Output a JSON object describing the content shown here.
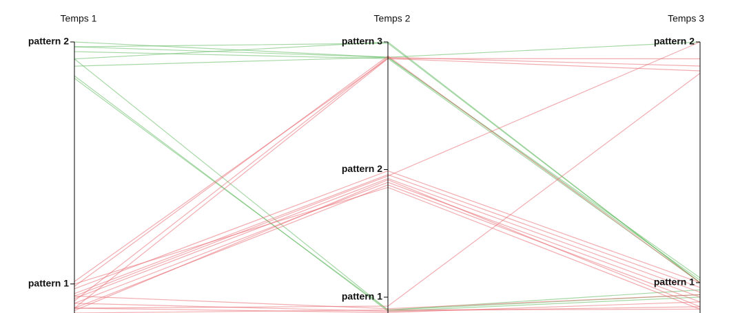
{
  "chart_data": {
    "type": "parallel",
    "dimensions": [
      {
        "name": "Temps 1",
        "ylim": [
          0.88,
          2
        ],
        "yticks": [
          {
            "value": 2,
            "label": "pattern 2"
          },
          {
            "value": 1,
            "label": "pattern 1"
          }
        ]
      },
      {
        "name": "Temps 2",
        "ylim": [
          0.876,
          3
        ],
        "yticks": [
          {
            "value": 3,
            "label": "pattern 3"
          },
          {
            "value": 2,
            "label": "pattern 2"
          },
          {
            "value": 1,
            "label": "pattern 1"
          }
        ]
      },
      {
        "name": "Temps 3",
        "ylim": [
          0.874,
          2
        ],
        "yticks": [
          {
            "value": 2,
            "label": "pattern 2"
          },
          {
            "value": 1,
            "label": "pattern 1"
          }
        ]
      }
    ],
    "series": [
      {
        "color": "#5cb85c",
        "values": [
          2.0,
          2.88,
          1.02
        ]
      },
      {
        "color": "#5cb85c",
        "values": [
          1.98,
          2.88,
          1.01
        ]
      },
      {
        "color": "#5cb85c",
        "values": [
          1.96,
          2.87,
          1.0
        ]
      },
      {
        "color": "#5cb85c",
        "values": [
          1.93,
          3.0,
          1.0
        ]
      },
      {
        "color": "#5cb85c",
        "values": [
          1.9,
          2.88,
          2.0
        ]
      },
      {
        "color": "#5cb85c",
        "values": [
          1.93,
          0.9,
          0.97
        ]
      },
      {
        "color": "#5cb85c",
        "values": [
          1.86,
          0.89,
          0.94
        ]
      },
      {
        "color": "#5cb85c",
        "values": [
          1.85,
          0.9,
          0.95
        ]
      },
      {
        "color": "#5cb85c",
        "values": [
          1.98,
          2.99,
          1.0
        ]
      },
      {
        "color": "#e8676f",
        "values": [
          1.01,
          2.87,
          1.93
        ]
      },
      {
        "color": "#e8676f",
        "values": [
          0.93,
          2.88,
          1.9
        ]
      },
      {
        "color": "#e8676f",
        "values": [
          0.9,
          2.87,
          1.88
        ]
      },
      {
        "color": "#e8676f",
        "values": [
          0.95,
          1.95,
          2.0
        ]
      },
      {
        "color": "#e8676f",
        "values": [
          0.9,
          0.93,
          1.87
        ]
      },
      {
        "color": "#e8676f",
        "values": [
          0.98,
          1.99,
          1.0
        ]
      },
      {
        "color": "#e8676f",
        "values": [
          0.96,
          1.96,
          0.98
        ]
      },
      {
        "color": "#e8676f",
        "values": [
          0.94,
          1.93,
          0.96
        ]
      },
      {
        "color": "#e8676f",
        "values": [
          0.92,
          1.9,
          0.94
        ]
      },
      {
        "color": "#e8676f",
        "values": [
          0.9,
          1.88,
          0.92
        ]
      },
      {
        "color": "#e8676f",
        "values": [
          0.89,
          1.92,
          0.9
        ]
      },
      {
        "color": "#e8676f",
        "values": [
          1.0,
          1.86,
          0.89
        ]
      },
      {
        "color": "#e8676f",
        "values": [
          0.95,
          0.91,
          0.95
        ]
      },
      {
        "color": "#e8676f",
        "values": [
          0.92,
          0.89,
          0.9
        ]
      },
      {
        "color": "#e8676f",
        "values": [
          0.9,
          0.88,
          0.92
        ]
      },
      {
        "color": "#e8676f",
        "values": [
          0.88,
          0.9,
          0.89
        ]
      },
      {
        "color": "#e8676f",
        "values": [
          0.99,
          2.89,
          1.0
        ]
      }
    ]
  }
}
